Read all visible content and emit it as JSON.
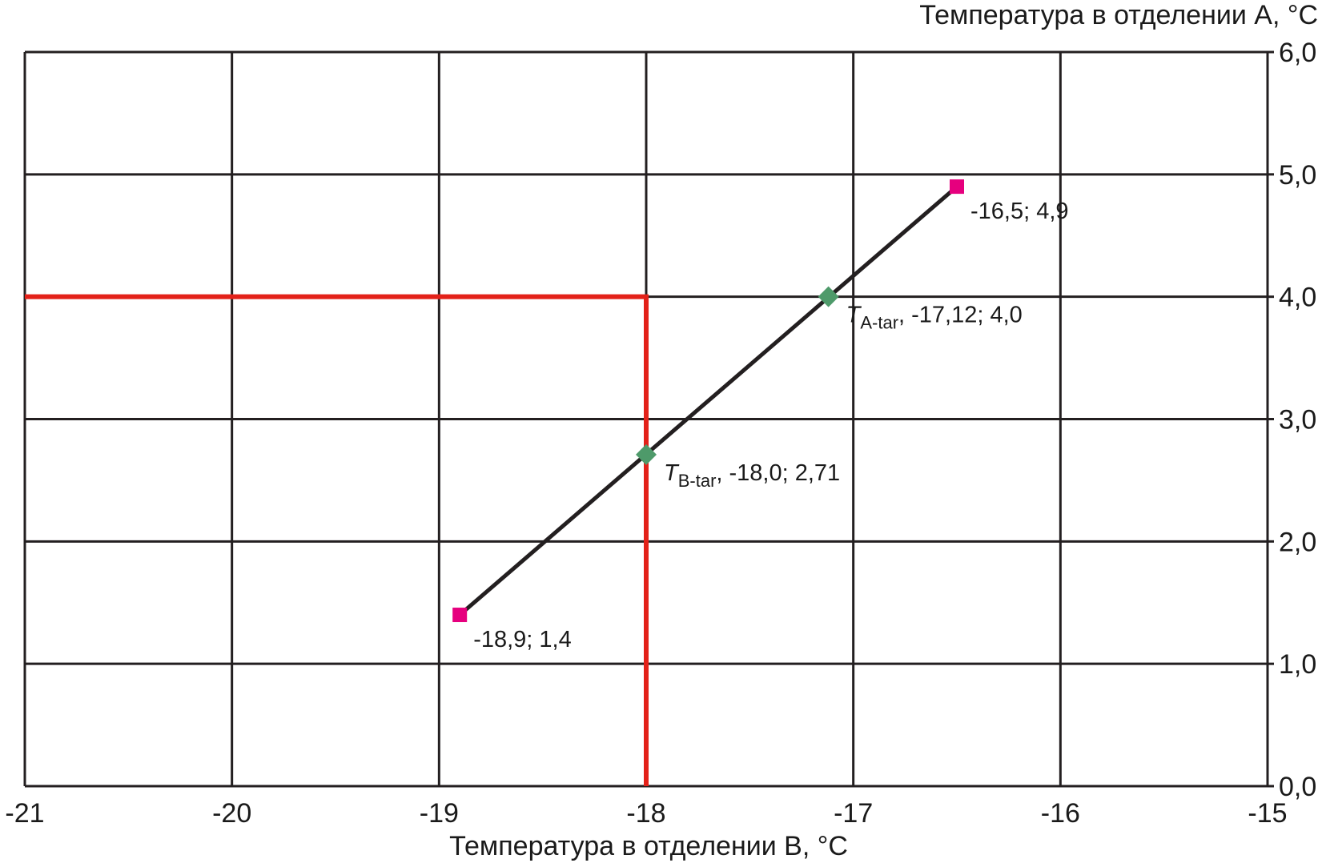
{
  "chart_data": {
    "type": "line",
    "xlabel": "Температура в отделении В, °C",
    "ylabel": "Температура в отделении А, °C",
    "xlim": [
      -21,
      -15
    ],
    "ylim": [
      0,
      6
    ],
    "x_ticks": [
      -21,
      -20,
      -19,
      -18,
      -17,
      -16,
      -15
    ],
    "x_tick_labels": [
      "-21",
      "-20",
      "-19",
      "-18",
      "-17",
      "-16",
      "-15"
    ],
    "y_ticks": [
      0,
      1,
      2,
      3,
      4,
      5,
      6
    ],
    "y_tick_labels": [
      "0,0",
      "1,0",
      "2,0",
      "3,0",
      "4,0",
      "5,0",
      "6,0"
    ],
    "y_axis_position": "right",
    "grid": true,
    "series": [
      {
        "x": [
          -18.9,
          -16.5
        ],
        "y": [
          1.4,
          4.9
        ],
        "color": "#231f20"
      }
    ],
    "endpoints": [
      {
        "x": -18.9,
        "y": 1.4,
        "label": "-18,9; 1,4",
        "color": "#e6007e"
      },
      {
        "x": -16.5,
        "y": 4.9,
        "label": "-16,5; 4,9",
        "color": "#e6007e"
      }
    ],
    "targets": [
      {
        "x": -17.12,
        "y": 4.0,
        "symbol": "T",
        "subscript": "A-tar",
        "label": ", -17,12; 4,0",
        "color": "#4e9a6a"
      },
      {
        "x": -18.0,
        "y": 2.71,
        "symbol": "T",
        "subscript": "B-tar",
        "label": ", -18,0; 2,71",
        "color": "#4e9a6a"
      }
    ],
    "reference_lines": {
      "color": "#e32119",
      "horizontal_y": 4.0,
      "vertical_x": -18.0
    }
  }
}
